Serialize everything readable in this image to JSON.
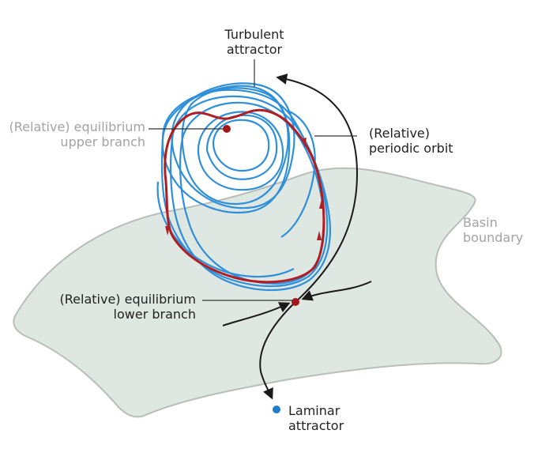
{
  "labels": {
    "turbulent": [
      "Turbulent",
      "attractor"
    ],
    "upper": [
      "(Relative) equilibrium",
      "upper branch"
    ],
    "periodic": [
      "(Relative)",
      "periodic orbit"
    ],
    "basin": [
      "Basin",
      "boundary"
    ],
    "lower": [
      "(Relative) equilibrium",
      "lower branch"
    ],
    "laminar": [
      "Laminar",
      "attractor"
    ]
  },
  "colors": {
    "basin_fill": "#dfe7e3",
    "basin_stroke": "#b8beba",
    "turbulent": "#2f8fd8",
    "periodic": "#b01e23",
    "equilibrium": "#a3171c",
    "laminar": "#1f7ccc",
    "arrows": "#1a1a1a",
    "leader": "#333333"
  }
}
